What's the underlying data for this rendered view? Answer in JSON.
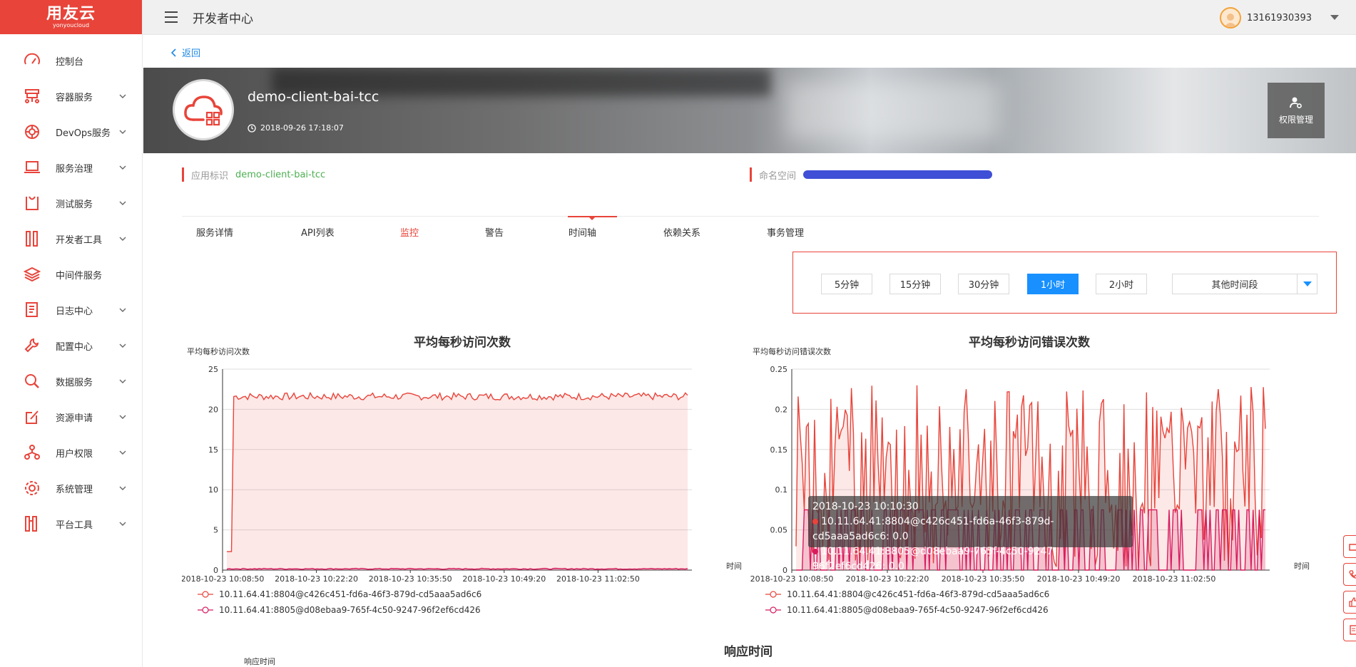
{
  "brand": {
    "logo_text": "用友云",
    "logo_sub": "yonyoucloud",
    "accent": "#e8443a"
  },
  "header": {
    "title": "开发者中心",
    "user_phone": "13161930393"
  },
  "sidebar": {
    "items": [
      {
        "label": "控制台",
        "icon": "dashboard-icon",
        "expandable": false
      },
      {
        "label": "容器服务",
        "icon": "container-icon",
        "expandable": true
      },
      {
        "label": "DevOps服务",
        "icon": "devops-icon",
        "expandable": true
      },
      {
        "label": "服务治理",
        "icon": "laptop-icon",
        "expandable": true
      },
      {
        "label": "测试服务",
        "icon": "test-icon",
        "expandable": true
      },
      {
        "label": "开发者工具",
        "icon": "tools-icon",
        "expandable": true
      },
      {
        "label": "中间件服务",
        "icon": "layers-icon",
        "expandable": false
      },
      {
        "label": "日志中心",
        "icon": "log-icon",
        "expandable": true
      },
      {
        "label": "配置中心",
        "icon": "wrench-icon",
        "expandable": true
      },
      {
        "label": "数据服务",
        "icon": "search-icon",
        "expandable": true
      },
      {
        "label": "资源申请",
        "icon": "edit-icon",
        "expandable": true
      },
      {
        "label": "用户权限",
        "icon": "user-tree-icon",
        "expandable": true
      },
      {
        "label": "系统管理",
        "icon": "gear-icon",
        "expandable": true
      },
      {
        "label": "平台工具",
        "icon": "toolbox-icon",
        "expandable": true
      }
    ]
  },
  "back_label": "返回",
  "app": {
    "name": "demo-client-bai-tcc",
    "created": "2018-09-26 17:18:07",
    "perm_label": "权限管理"
  },
  "info": {
    "id_key": "应用标识",
    "id_value": "demo-client-bai-tcc",
    "ns_key": "命名空间"
  },
  "tabs": [
    "服务详情",
    "API列表",
    "监控",
    "警告",
    "时间轴",
    "依赖关系",
    "事务管理"
  ],
  "active_tab": "监控",
  "time_range": {
    "options": [
      "5分钟",
      "15分钟",
      "30分钟",
      "1小时",
      "2小时"
    ],
    "active": "1小时",
    "other_label": "其他时间段"
  },
  "tooltip": {
    "time": "2018-10-23 10:10:30",
    "rows": [
      "10.11.64.41:8804@c426c451-fd6a-46f3-879d-cd5aaa5ad6c6: 0.0",
      "10.11.64.41:8805@d08ebaa9-765f-4c50-9247-96f2ef6cd426: 0.0"
    ]
  },
  "response_time": {
    "title": "响应时间",
    "ylabel": "响应时间"
  },
  "chart_data": [
    {
      "type": "area",
      "title": "平均每秒访问次数",
      "ylabel": "平均每秒访问次数",
      "xlabel": "时间",
      "ylim": [
        0,
        25
      ],
      "yticks": [
        0,
        5,
        10,
        15,
        20,
        25
      ],
      "xticks": [
        "2018-10-23 10:08:50",
        "2018-10-23 10:22:20",
        "2018-10-23 10:35:50",
        "2018-10-23 10:49:20",
        "2018-10-23 11:02:50"
      ],
      "series": [
        {
          "name": "10.11.64.41:8804@c426c451-fd6a-46f3-879d-cd5aaa5ad6c6",
          "color": "#e8443a",
          "start": 2.3,
          "level": 21.6
        },
        {
          "name": "10.11.64.41:8805@d08ebaa9-765f-4c50-9247-96f2ef6cd426",
          "color": "#d81b60",
          "level": 0.1
        }
      ]
    },
    {
      "type": "area",
      "title": "平均每秒访问错误次数",
      "ylabel": "平均每秒访问错误次数",
      "xlabel": "时间",
      "ylim": [
        0,
        0.25
      ],
      "yticks": [
        0,
        0.05,
        0.1,
        0.15,
        0.2,
        0.25
      ],
      "xticks": [
        "2018-10-23 10:08:50",
        "2018-10-23 10:22:20",
        "2018-10-23 10:35:50",
        "2018-10-23 10:49:20",
        "2018-10-23 11:02:50"
      ],
      "series": [
        {
          "name": "10.11.64.41:8804@c426c451-fd6a-46f3-879d-cd5aaa5ad6c6",
          "color": "#e8443a",
          "range": [
            0,
            0.25
          ]
        },
        {
          "name": "10.11.64.41:8805@d08ebaa9-765f-4c50-9247-96f2ef6cd426",
          "color": "#d81b60",
          "range": [
            0,
            0.075
          ]
        }
      ]
    }
  ]
}
